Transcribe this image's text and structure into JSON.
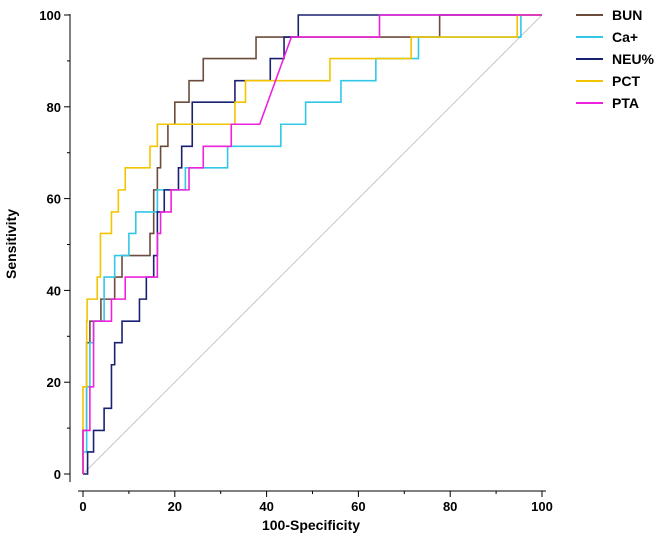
{
  "chart_data": {
    "type": "line",
    "title": "",
    "xlabel": "100-Specificity",
    "ylabel": "Sensitivity",
    "xlim": [
      0,
      100
    ],
    "ylim": [
      0,
      100
    ],
    "xticks": [
      "0",
      "20",
      "40",
      "60",
      "80",
      "100"
    ],
    "yticks": [
      "0",
      "20",
      "40",
      "60",
      "80",
      "100"
    ],
    "grid": false,
    "legend_position": "top-right",
    "reference_line": {
      "color": "#c8c8c8",
      "points": [
        [
          0,
          0
        ],
        [
          100,
          100
        ]
      ]
    },
    "series": [
      {
        "name": "BUN",
        "color": "#6b4c3b",
        "points": [
          [
            0,
            0
          ],
          [
            0,
            9.5
          ],
          [
            0.8,
            9.5
          ],
          [
            0.8,
            28.6
          ],
          [
            1.5,
            28.6
          ],
          [
            1.5,
            33.3
          ],
          [
            3.9,
            33.3
          ],
          [
            3.9,
            38.1
          ],
          [
            6.9,
            38.1
          ],
          [
            6.9,
            42.9
          ],
          [
            8.5,
            42.9
          ],
          [
            8.5,
            47.6
          ],
          [
            14.6,
            47.6
          ],
          [
            14.6,
            52.4
          ],
          [
            15.4,
            52.4
          ],
          [
            15.4,
            61.9
          ],
          [
            16.2,
            61.9
          ],
          [
            16.2,
            66.7
          ],
          [
            16.9,
            66.7
          ],
          [
            16.9,
            71.4
          ],
          [
            18.5,
            71.4
          ],
          [
            18.5,
            76.2
          ],
          [
            20,
            76.2
          ],
          [
            20,
            81
          ],
          [
            23.1,
            81
          ],
          [
            23.1,
            85.7
          ],
          [
            26.2,
            85.7
          ],
          [
            26.2,
            90.5
          ],
          [
            37.7,
            90.5
          ],
          [
            37.7,
            95.2
          ],
          [
            77.7,
            95.2
          ],
          [
            77.7,
            100
          ],
          [
            100,
            100
          ]
        ]
      },
      {
        "name": "Ca+",
        "color": "#33c7e6",
        "points": [
          [
            0,
            0
          ],
          [
            0,
            4.8
          ],
          [
            0.8,
            4.8
          ],
          [
            0.8,
            19
          ],
          [
            1.5,
            19
          ],
          [
            1.5,
            28.6
          ],
          [
            2.3,
            28.6
          ],
          [
            2.3,
            33.3
          ],
          [
            4.6,
            33.3
          ],
          [
            4.6,
            42.9
          ],
          [
            6.9,
            42.9
          ],
          [
            6.9,
            47.6
          ],
          [
            10,
            47.6
          ],
          [
            10,
            52.4
          ],
          [
            11.5,
            52.4
          ],
          [
            11.5,
            57.1
          ],
          [
            16.2,
            57.1
          ],
          [
            16.2,
            61.9
          ],
          [
            22.3,
            61.9
          ],
          [
            22.3,
            66.7
          ],
          [
            31.5,
            66.7
          ],
          [
            31.5,
            71.4
          ],
          [
            43.1,
            71.4
          ],
          [
            43.1,
            76.2
          ],
          [
            48.5,
            76.2
          ],
          [
            48.5,
            81
          ],
          [
            56.2,
            81
          ],
          [
            56.2,
            85.7
          ],
          [
            63.8,
            85.7
          ],
          [
            63.8,
            90.5
          ],
          [
            73.1,
            90.5
          ],
          [
            73.1,
            95.2
          ],
          [
            95.4,
            95.2
          ],
          [
            95.4,
            100
          ],
          [
            100,
            100
          ]
        ]
      },
      {
        "name": "NEU%",
        "color": "#1a2072",
        "points": [
          [
            0,
            0
          ],
          [
            1,
            0
          ],
          [
            1,
            4.8
          ],
          [
            2.3,
            4.8
          ],
          [
            2.3,
            9.5
          ],
          [
            4.6,
            9.5
          ],
          [
            4.6,
            14.3
          ],
          [
            6.2,
            14.3
          ],
          [
            6.2,
            23.8
          ],
          [
            6.9,
            23.8
          ],
          [
            6.9,
            28.6
          ],
          [
            8.5,
            28.6
          ],
          [
            8.5,
            33.3
          ],
          [
            12.3,
            33.3
          ],
          [
            12.3,
            38.1
          ],
          [
            13.8,
            38.1
          ],
          [
            13.8,
            42.9
          ],
          [
            15.4,
            42.9
          ],
          [
            15.4,
            47.6
          ],
          [
            16.2,
            47.6
          ],
          [
            16.2,
            57.1
          ],
          [
            17.7,
            57.1
          ],
          [
            17.7,
            61.9
          ],
          [
            20.8,
            61.9
          ],
          [
            20.8,
            66.7
          ],
          [
            21.5,
            66.7
          ],
          [
            21.5,
            71.4
          ],
          [
            23.8,
            71.4
          ],
          [
            23.8,
            81
          ],
          [
            33.1,
            81
          ],
          [
            33.1,
            85.7
          ],
          [
            40.8,
            85.7
          ],
          [
            40.8,
            90.5
          ],
          [
            43.8,
            90.5
          ],
          [
            43.8,
            95.2
          ],
          [
            46.9,
            95.2
          ],
          [
            46.9,
            100
          ],
          [
            100,
            100
          ]
        ]
      },
      {
        "name": "PCT",
        "color": "#f2c500",
        "points": [
          [
            0,
            0
          ],
          [
            0,
            19
          ],
          [
            0.8,
            19
          ],
          [
            0.8,
            33.3
          ],
          [
            0.9,
            33.3
          ],
          [
            0.9,
            38.1
          ],
          [
            3.1,
            38.1
          ],
          [
            3.1,
            42.9
          ],
          [
            3.8,
            42.9
          ],
          [
            3.8,
            52.4
          ],
          [
            6.2,
            52.4
          ],
          [
            6.2,
            57.1
          ],
          [
            7.7,
            57.1
          ],
          [
            7.7,
            61.9
          ],
          [
            9.2,
            61.9
          ],
          [
            9.2,
            66.7
          ],
          [
            14.6,
            66.7
          ],
          [
            14.6,
            71.4
          ],
          [
            16.2,
            71.4
          ],
          [
            16.2,
            76.2
          ],
          [
            33.1,
            76.2
          ],
          [
            33.1,
            81
          ],
          [
            35.4,
            81
          ],
          [
            35.4,
            85.7
          ],
          [
            53.8,
            85.7
          ],
          [
            53.8,
            90.5
          ],
          [
            71.5,
            90.5
          ],
          [
            71.5,
            95.2
          ],
          [
            94.6,
            95.2
          ],
          [
            94.6,
            100
          ],
          [
            100,
            100
          ]
        ]
      },
      {
        "name": "PTA",
        "color": "#ee22dd",
        "points": [
          [
            0,
            0
          ],
          [
            0,
            9.5
          ],
          [
            1.5,
            9.5
          ],
          [
            1.5,
            19
          ],
          [
            2.3,
            19
          ],
          [
            2.3,
            33.3
          ],
          [
            6.2,
            33.3
          ],
          [
            6.2,
            38.1
          ],
          [
            9.2,
            38.1
          ],
          [
            9.2,
            42.9
          ],
          [
            16.2,
            42.9
          ],
          [
            16.2,
            52.4
          ],
          [
            16.9,
            52.4
          ],
          [
            16.9,
            57.1
          ],
          [
            19.2,
            57.1
          ],
          [
            19.2,
            61.9
          ],
          [
            23.1,
            61.9
          ],
          [
            23.1,
            66.7
          ],
          [
            26.2,
            66.7
          ],
          [
            26.2,
            71.4
          ],
          [
            32.3,
            71.4
          ],
          [
            32.3,
            76.2
          ],
          [
            38.5,
            76.2
          ],
          [
            45.4,
            95.2
          ],
          [
            64.6,
            95.2
          ],
          [
            64.6,
            100
          ],
          [
            100,
            100
          ]
        ]
      }
    ]
  }
}
